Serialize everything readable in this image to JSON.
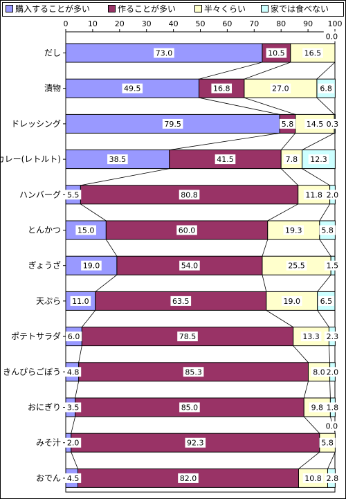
{
  "legend": [
    {
      "label": "購入することが多い",
      "color": "#9999ff"
    },
    {
      "label": "作ることが多い",
      "color": "#993366"
    },
    {
      "label": "半々くらい",
      "color": "#ffffcc"
    },
    {
      "label": "家では食べない",
      "color": "#ccffff"
    }
  ],
  "chart_data": {
    "type": "bar",
    "orientation": "horizontal-stacked-100",
    "xlim": [
      0,
      100
    ],
    "xticks": [
      "0",
      "10",
      "20",
      "30",
      "40",
      "50",
      "60",
      "70",
      "80",
      "90",
      "100"
    ],
    "categories": [
      "だし",
      "漬物",
      "ドレッシング",
      "カレー(レトルト)",
      "ハンバーグ",
      "とんかつ",
      "ぎょうざ",
      "天ぷら",
      "ポテトサラダ",
      "きんぴらごぼう",
      "おにぎり",
      "みそ汁",
      "おでん"
    ],
    "series": [
      {
        "name": "購入することが多い",
        "color": "#9999ff",
        "values": [
          73.0,
          49.5,
          79.5,
          38.5,
          5.5,
          15.0,
          19.0,
          11.0,
          6.0,
          4.8,
          3.5,
          2.0,
          4.5
        ],
        "labels": [
          "73.0",
          "49.5",
          "79.5",
          "38.5",
          "5.5",
          "15.0",
          "19.0",
          "11.0",
          "6.0",
          "4.8",
          "3.5",
          "2.0",
          "4.5"
        ]
      },
      {
        "name": "作ることが多い",
        "color": "#993366",
        "values": [
          10.5,
          16.8,
          5.8,
          41.5,
          80.8,
          60.0,
          54.0,
          63.5,
          78.5,
          85.3,
          85.0,
          92.3,
          82.0
        ],
        "labels": [
          "10.5",
          "16.8",
          "5.8",
          "41.5",
          "80.8",
          "60.0",
          "54.0",
          "63.5",
          "78.5",
          "85.3",
          "85.0",
          "92.3",
          "82.0"
        ]
      },
      {
        "name": "半々くらい",
        "color": "#ffffcc",
        "values": [
          16.5,
          27.0,
          14.5,
          7.8,
          11.8,
          19.3,
          25.5,
          19.0,
          13.3,
          8.0,
          9.8,
          5.8,
          10.8
        ],
        "labels": [
          "16.5",
          "27.0",
          "14.5",
          "7.8",
          "11.8",
          "19.3",
          "25.5",
          "19.0",
          "13.3",
          "8.0",
          "9.8",
          "5.8",
          "10.8"
        ]
      },
      {
        "name": "家では食べない",
        "color": "#ccffff",
        "values": [
          0.0,
          6.8,
          0.3,
          12.3,
          2.0,
          5.8,
          1.5,
          6.5,
          2.3,
          2.0,
          1.8,
          0.0,
          2.8
        ],
        "labels": [
          "0.0",
          "6.8",
          "0.3",
          "12.3",
          "2.0",
          "5.8",
          "1.5",
          "6.5",
          "2.3",
          "2.0",
          "1.8",
          "0.0",
          "2.8"
        ]
      }
    ],
    "grid": false,
    "series_lines": true,
    "legend_position": "top"
  }
}
